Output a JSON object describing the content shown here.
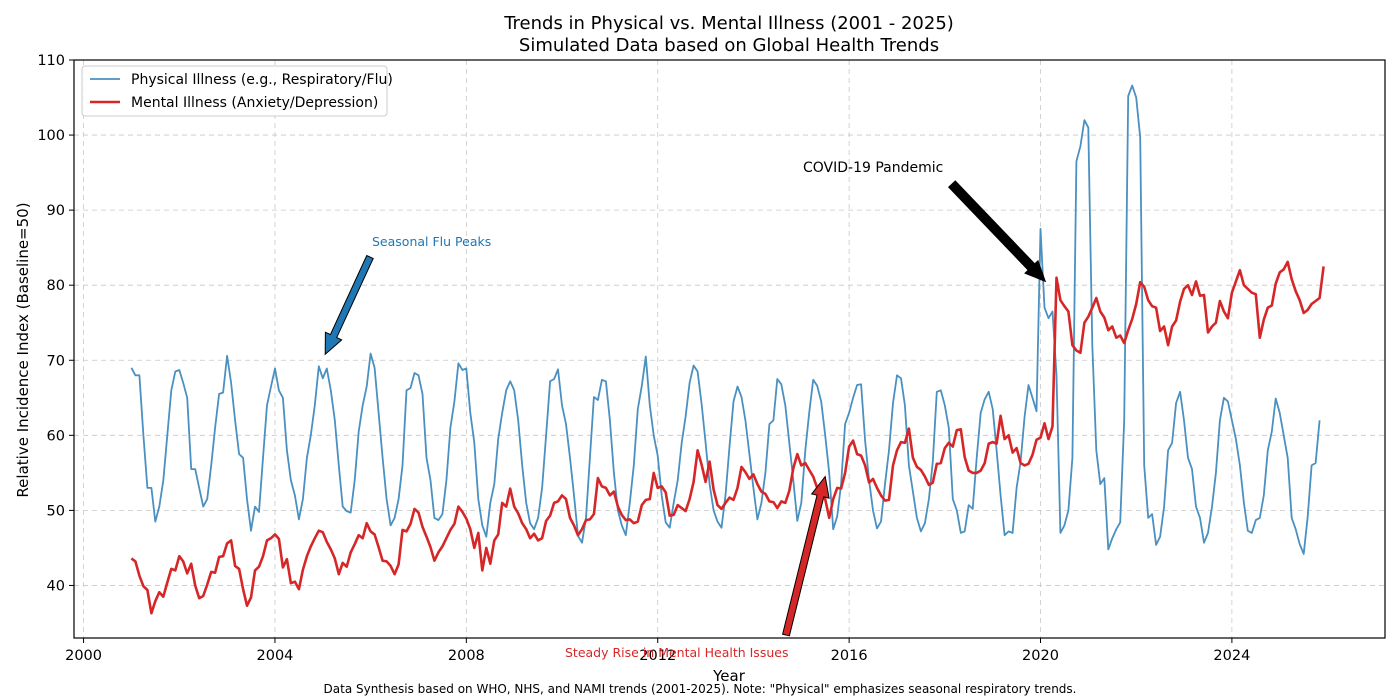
{
  "chart_data": {
    "type": "line",
    "title": "Trends in Physical vs. Mental Illness (2001 - 2025)",
    "subtitle": "Simulated Data based on Global Health Trends",
    "xlabel": "Year",
    "ylabel": "Relative Incidence Index (Baseline=50)",
    "xlim": [
      1999.8,
      2027.2
    ],
    "ylim": [
      33,
      110
    ],
    "xticks": [
      2000,
      2004,
      2008,
      2012,
      2016,
      2020,
      2024
    ],
    "yticks": [
      40,
      50,
      60,
      70,
      80,
      90,
      100,
      110
    ],
    "grid": true,
    "legend_position": "top-left",
    "x_start": 2001.0,
    "x_step_years": 0.0833333,
    "series": [
      {
        "name": "Physical Illness (e.g., Respiratory/Flu)",
        "color": "#4a90c0",
        "values": [
          69,
          68,
          68,
          60,
          53,
          53,
          48.5,
          50.5,
          54,
          60,
          66,
          68.5,
          68.7,
          67,
          65,
          55.5,
          55.5,
          53,
          50.5,
          51.5,
          56,
          61,
          65.5,
          65.7,
          70.6,
          67,
          62,
          57.5,
          57,
          51.5,
          47.3,
          50.5,
          49.8,
          57,
          64,
          66.5,
          68.9,
          66,
          65,
          58,
          54,
          52,
          48.8,
          51.5,
          57,
          60,
          64,
          69.2,
          67.6,
          68.9,
          66,
          62,
          56,
          50.5,
          49.9,
          49.7,
          54,
          60.5,
          64,
          66.5,
          70.9,
          69,
          63,
          57,
          51.5,
          48,
          49,
          51.5,
          56,
          66,
          66.3,
          68.3,
          68,
          65.5,
          57,
          54,
          49,
          48.7,
          49.5,
          54,
          61,
          64.5,
          69.6,
          68.7,
          68.9,
          63,
          59,
          51.5,
          48,
          46.5,
          51,
          53.5,
          59.5,
          63,
          66,
          67.2,
          66,
          62,
          56,
          51,
          48.3,
          47.5,
          49,
          53,
          60,
          67.2,
          67.5,
          68.8,
          64,
          61.5,
          57,
          52,
          46.6,
          45.7,
          49,
          57,
          65.1,
          64.7,
          67.4,
          67.2,
          62,
          55,
          50,
          48,
          46.7,
          51,
          56,
          63.5,
          66.6,
          70.5,
          64,
          60,
          57.3,
          52,
          48.4,
          47.7,
          51,
          54,
          59,
          62.5,
          67,
          69.3,
          68.5,
          64.2,
          59,
          53.5,
          50,
          48.5,
          47.7,
          52,
          58.5,
          64.5,
          66.5,
          65.1,
          62,
          57.5,
          53,
          48.8,
          51,
          55,
          61.5,
          62,
          67.5,
          66.8,
          64,
          59,
          54,
          48.6,
          51,
          58,
          63,
          67.4,
          66.6,
          64.5,
          60,
          55,
          47.5,
          49.2,
          53.5,
          61.5,
          63,
          65,
          66.7,
          66.8,
          59.3,
          54,
          50,
          47.6,
          48.5,
          53.5,
          58,
          64.3,
          68,
          67.6,
          64,
          56,
          52.5,
          49,
          47.2,
          48.3,
          51.5,
          56.5,
          65.8,
          66,
          64,
          61,
          51.5,
          50,
          47,
          47.2,
          50.7,
          50.2,
          57,
          63,
          64.8,
          65.8,
          63.5,
          58,
          52,
          46.7,
          47.2,
          47,
          53,
          56.5,
          62.5,
          66.7,
          65,
          63.2,
          87.5,
          77,
          75.6,
          76.5,
          68,
          47,
          48,
          50,
          57,
          96.5,
          98.5,
          102,
          101,
          72,
          58,
          53.5,
          54.3,
          44.8,
          46.3,
          47.5,
          48.4,
          62,
          105.2,
          106.6,
          105,
          99.7,
          56,
          49,
          49.5,
          45.4,
          46.5,
          50.5,
          58,
          59,
          64.3,
          65.8,
          62,
          57,
          55.5,
          50.5,
          49,
          45.7,
          47,
          50.5,
          55,
          62,
          65,
          64.5,
          62,
          59.5,
          56,
          51,
          47.3,
          47,
          48.7,
          49,
          52,
          58,
          60.5,
          64.9,
          63,
          60,
          57,
          49,
          47.5,
          45.5,
          44.2,
          49,
          56,
          56.3,
          62
        ]
      },
      {
        "name": "Mental Illness (Anxiety/Depression)",
        "color": "#d62728",
        "values": [
          43.6,
          43.2,
          41.3,
          39.9,
          39.4,
          36.3,
          37.9,
          39.1,
          38.5,
          40.4,
          42.2,
          42,
          43.9,
          43.2,
          41.6,
          42.9,
          40,
          38.3,
          38.6,
          40.1,
          41.8,
          41.7,
          43.8,
          43.9,
          45.6,
          46,
          42.6,
          42.2,
          39.5,
          37.3,
          38.4,
          42,
          42.5,
          43.9,
          46,
          46.3,
          46.8,
          46.2,
          42.4,
          43.5,
          40.3,
          40.5,
          39.5,
          42.1,
          43.9,
          45.2,
          46.3,
          47.3,
          47.1,
          45.8,
          44.8,
          43.6,
          41.5,
          43,
          42.5,
          44.4,
          45.5,
          46.7,
          46.3,
          48.3,
          47.2,
          46.8,
          45.1,
          43.3,
          43.2,
          42.6,
          41.5,
          42.8,
          47.4,
          47.2,
          48.2,
          50.2,
          49.7,
          47.8,
          46.5,
          45.1,
          43.3,
          44.4,
          45.2,
          46.3,
          47.4,
          48.2,
          50.5,
          49.8,
          48.9,
          47.5,
          45,
          47,
          42,
          45,
          42.9,
          46,
          46.8,
          51,
          50.5,
          52.9,
          50.5,
          49.6,
          48.3,
          47.5,
          46.3,
          46.9,
          46,
          46.3,
          48.6,
          49.3,
          51,
          51.2,
          52,
          51.5,
          49,
          48,
          46.7,
          47.5,
          48.7,
          48.8,
          49.5,
          54.3,
          53.2,
          53,
          52,
          52.5,
          50.5,
          49.4,
          48.7,
          48.8,
          48.3,
          48.5,
          50.7,
          51.4,
          51.5,
          55,
          53,
          53.2,
          52.4,
          49.3,
          49.4,
          50.7,
          50.3,
          49.9,
          51.5,
          53.8,
          58,
          56.1,
          53.8,
          56.5,
          52.8,
          50.7,
          50.2,
          51,
          51.7,
          51.4,
          53,
          55.8,
          55.1,
          54.2,
          54.8,
          53.5,
          52.5,
          52.2,
          51.2,
          51.1,
          50.3,
          51.2,
          51,
          52.6,
          55.6,
          57.5,
          56,
          56.3,
          55.4,
          54.5,
          53,
          52.7,
          51.5,
          49,
          51.5,
          53,
          52.9,
          55,
          58.5,
          59.3,
          57.5,
          57.3,
          56,
          53.7,
          54.2,
          53,
          52,
          51.3,
          51.4,
          56,
          58,
          59.1,
          59,
          60.9,
          57,
          55.8,
          55.4,
          54.5,
          53.4,
          53.7,
          56.2,
          56.3,
          58.3,
          59,
          58.5,
          60.7,
          60.8,
          57.1,
          55.3,
          55,
          55,
          55.3,
          56.3,
          58.9,
          59.1,
          58.9,
          62.6,
          59.5,
          60,
          57.7,
          58.3,
          56.3,
          56,
          56.2,
          57.4,
          59.4,
          59.7,
          61.6,
          59.5,
          61.2,
          81,
          78,
          77.2,
          76.5,
          72,
          71.3,
          71,
          75,
          75.8,
          77,
          78.3,
          76.5,
          75.7,
          74,
          74.5,
          73,
          73.3,
          72.3,
          74,
          75.5,
          77.5,
          80.4,
          79.8,
          78,
          77.2,
          77,
          73.9,
          74.5,
          72,
          74.5,
          75.3,
          77.8,
          79.5,
          80,
          78.7,
          80.5,
          78.6,
          78.7,
          73.7,
          74.5,
          75,
          77.9,
          76.5,
          75.6,
          79,
          80.5,
          82,
          80,
          79.5,
          79,
          78.8,
          73,
          75.4,
          77,
          77.3,
          80.2,
          81.7,
          82.1,
          83.1,
          80.8,
          79.2,
          78,
          76.3,
          76.7,
          77.5,
          77.9,
          78.3,
          82.5
        ]
      }
    ],
    "annotations": [
      {
        "text": "Seasonal Flu Peaks",
        "color": "#1f77b4",
        "text_at": [
          2006.0,
          85
        ],
        "arrow_to": [
          2005.05,
          70.8
        ]
      },
      {
        "text": "COVID-19 Pandemic",
        "color": "#000000",
        "text_at": [
          2015.0,
          95
        ],
        "arrow_to": [
          2020.1,
          80.5
        ]
      },
      {
        "text": "Steady Rise in Mental Health Issues",
        "color": "#d62728",
        "text_at": [
          2009.3,
          31
        ],
        "arrow_to": [
          2015.5,
          54.5
        ]
      }
    ]
  },
  "footnote": "Data Synthesis based on WHO, NHS, and NAMI trends (2001-2025). Note: \"Physical\" emphasizes seasonal respiratory trends."
}
